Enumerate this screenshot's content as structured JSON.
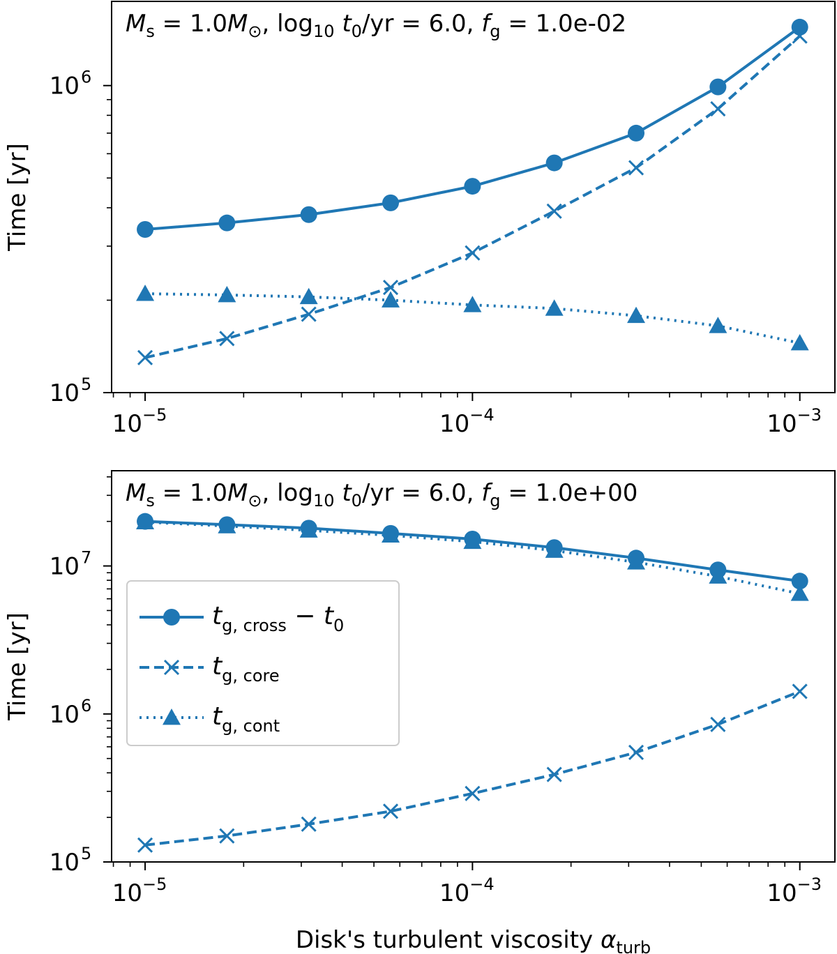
{
  "chart_data": [
    {
      "type": "line",
      "xscale": "log",
      "yscale": "log",
      "x": [
        1e-05,
        1.778e-05,
        3.162e-05,
        5.623e-05,
        0.0001,
        0.0001778,
        0.0003162,
        0.0005623,
        0.001
      ],
      "xlim": [
        7.9e-06,
        0.00128
      ],
      "ylim": [
        100000,
        1880000
      ],
      "xticks": [
        {
          "value": 1e-05,
          "base": "10",
          "exp": "−5"
        },
        {
          "value": 0.0001,
          "base": "10",
          "exp": "−4"
        },
        {
          "value": 0.001,
          "base": "10",
          "exp": "−3"
        }
      ],
      "yticks": [
        {
          "value": 100000,
          "base": "10",
          "exp": "5"
        },
        {
          "value": 1000000,
          "base": "10",
          "exp": "6"
        }
      ],
      "title": {
        "ms": "M",
        "ms_sub": "s",
        "eq1": " = 1.0",
        "msun": "M",
        "msun_sub": "⊙",
        "mid": ", log",
        "log_sub": "10",
        "t0": "t",
        "t0_sub": "0",
        "tail": "/yr = 6.0, ",
        "fg": "f",
        "fg_sub": "g",
        "fg_val": " = 1.0e-02"
      },
      "ylabel": "Time [yr]",
      "xlabel": "",
      "series": [
        {
          "name": "t_g,cross − t0",
          "style": "solid",
          "marker": "circle",
          "values": [
            340000,
            357000,
            380000,
            415000,
            470000,
            560000,
            700000,
            990000,
            1550000
          ]
        },
        {
          "name": "t_g,core",
          "style": "dashed",
          "marker": "x",
          "values": [
            130000,
            150000,
            180000,
            220000,
            285000,
            390000,
            540000,
            840000,
            1450000
          ]
        },
        {
          "name": "t_g,cont",
          "style": "dotted",
          "marker": "triangle",
          "values": [
            210000,
            208000,
            205000,
            200000,
            193000,
            188000,
            178000,
            165000,
            145000
          ]
        }
      ]
    },
    {
      "type": "line",
      "xscale": "log",
      "yscale": "log",
      "x": [
        1e-05,
        1.778e-05,
        3.162e-05,
        5.623e-05,
        0.0001,
        0.0001778,
        0.0003162,
        0.0005623,
        0.001
      ],
      "xlim": [
        7.9e-06,
        0.00128
      ],
      "ylim": [
        100000,
        44000000
      ],
      "xticks": [
        {
          "value": 1e-05,
          "base": "10",
          "exp": "−5"
        },
        {
          "value": 0.0001,
          "base": "10",
          "exp": "−4"
        },
        {
          "value": 0.001,
          "base": "10",
          "exp": "−3"
        }
      ],
      "yticks": [
        {
          "value": 100000,
          "base": "10",
          "exp": "5"
        },
        {
          "value": 1000000,
          "base": "10",
          "exp": "6"
        },
        {
          "value": 10000000,
          "base": "10",
          "exp": "7"
        }
      ],
      "title": {
        "ms": "M",
        "ms_sub": "s",
        "eq1": " = 1.0",
        "msun": "M",
        "msun_sub": "⊙",
        "mid": ", log",
        "log_sub": "10",
        "t0": "t",
        "t0_sub": "0",
        "tail": "/yr = 6.0, ",
        "fg": "f",
        "fg_sub": "g",
        "fg_val": " = 1.0e+00"
      },
      "ylabel": "Time [yr]",
      "xlabel": {
        "main": "Disk's turbulent viscosity ",
        "sym": "α",
        "sub": "turb"
      },
      "series": [
        {
          "name": "t_g,cross − t0",
          "style": "solid",
          "marker": "circle",
          "values": [
            20000000,
            19000000,
            18000000,
            16600000,
            15200000,
            13300000,
            11300000,
            9400000,
            7900000
          ]
        },
        {
          "name": "t_g,core",
          "style": "dashed",
          "marker": "x",
          "values": [
            130000,
            150000,
            180000,
            220000,
            290000,
            390000,
            550000,
            850000,
            1420000
          ]
        },
        {
          "name": "t_g,cont",
          "style": "dotted",
          "marker": "triangle",
          "values": [
            19800000,
            18600000,
            17400000,
            16100000,
            14600000,
            12700000,
            10600000,
            8500000,
            6500000
          ]
        }
      ],
      "legend": {
        "placement": "center-left",
        "entries": [
          {
            "sym": "t",
            "sub": "g, cross",
            "tail": " − ",
            "sym2": "t",
            "sub2": "0"
          },
          {
            "sym": "t",
            "sub": "g, core"
          },
          {
            "sym": "t",
            "sub": "g, cont"
          }
        ]
      }
    }
  ],
  "colors": {
    "series": "#1f77b4",
    "axes": "#000000",
    "background": "#ffffff",
    "legend_edge": "#cccccc"
  }
}
